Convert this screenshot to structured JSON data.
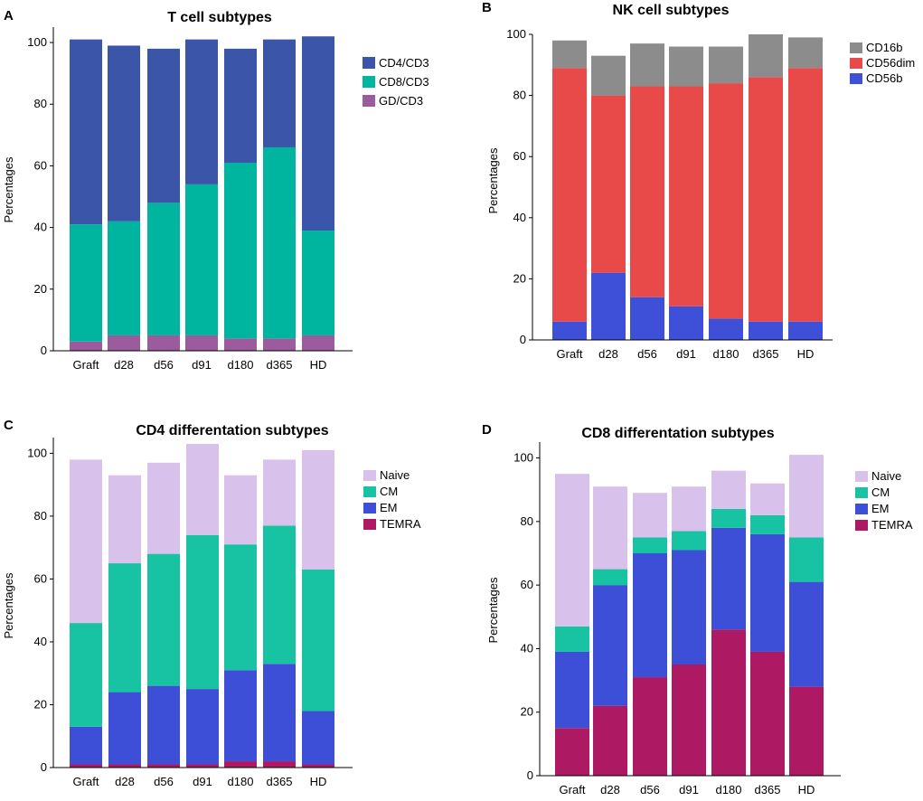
{
  "panel_letters": [
    "A",
    "B",
    "C",
    "D"
  ],
  "colors": {
    "cd4": "#3b55a8",
    "cd8": "#00b5a0",
    "gd": "#9c5b9c",
    "cd16b": "#8c8c8c",
    "cd56dim": "#e84a4a",
    "cd56b": "#3e4fd8",
    "naive": "#d8c2ec",
    "cm": "#17c3a3",
    "em": "#3d4fd6",
    "temra": "#ad1a63"
  },
  "chart_data": [
    {
      "type": "bar",
      "stacked": true,
      "title": "T cell subtypes",
      "xlabel": "",
      "ylabel": "Percentages",
      "ylim": [
        0,
        105
      ],
      "yticks": [
        0,
        20,
        40,
        60,
        80,
        100
      ],
      "categories": [
        "Graft",
        "d28",
        "d56",
        "d91",
        "d180",
        "d365",
        "HD"
      ],
      "legend_position": "top-right",
      "series": [
        {
          "name": "GD/CD3",
          "color": "#9c5b9c",
          "values": [
            3,
            5,
            5,
            5,
            4,
            4,
            5
          ]
        },
        {
          "name": "CD8/CD3",
          "color": "#00b5a0",
          "values": [
            38,
            37,
            43,
            49,
            57,
            62,
            34
          ]
        },
        {
          "name": "CD4/CD3",
          "color": "#3b55a8",
          "values": [
            60,
            57,
            50,
            47,
            37,
            35,
            63
          ]
        }
      ],
      "legend_order": [
        "CD4/CD3",
        "CD8/CD3",
        "GD/CD3"
      ]
    },
    {
      "type": "bar",
      "stacked": true,
      "title": "NK cell subtypes",
      "xlabel": "",
      "ylabel": "Percentages",
      "ylim": [
        0,
        100
      ],
      "yticks": [
        0,
        20,
        40,
        60,
        80,
        100
      ],
      "categories": [
        "Graft",
        "d28",
        "d56",
        "d91",
        "d180",
        "d365",
        "HD"
      ],
      "legend_position": "top-right",
      "series": [
        {
          "name": "CD56b",
          "color": "#3e4fd8",
          "values": [
            6,
            22,
            14,
            11,
            7,
            6,
            6
          ]
        },
        {
          "name": "CD56dim",
          "color": "#e84a4a",
          "values": [
            83,
            58,
            69,
            72,
            77,
            80,
            83
          ]
        },
        {
          "name": "CD16b",
          "color": "#8c8c8c",
          "values": [
            9,
            13,
            14,
            13,
            12,
            14,
            10
          ]
        }
      ],
      "legend_order": [
        "CD16b",
        "CD56dim",
        "CD56b"
      ]
    },
    {
      "type": "bar",
      "stacked": true,
      "title": "CD4 differentation subtypes",
      "xlabel": "",
      "ylabel": "Percentages",
      "ylim": [
        0,
        105
      ],
      "yticks": [
        0,
        20,
        40,
        60,
        80,
        100
      ],
      "categories": [
        "Graft",
        "d28",
        "d56",
        "d91",
        "d180",
        "d365",
        "HD"
      ],
      "legend_position": "top-right",
      "series": [
        {
          "name": "TEMRA",
          "color": "#ad1a63",
          "values": [
            1,
            1,
            1,
            1,
            2,
            2,
            1
          ]
        },
        {
          "name": "EM",
          "color": "#3d4fd6",
          "values": [
            12,
            23,
            25,
            24,
            29,
            31,
            17
          ]
        },
        {
          "name": "CM",
          "color": "#17c3a3",
          "values": [
            33,
            41,
            42,
            49,
            40,
            44,
            45
          ]
        },
        {
          "name": "Naive",
          "color": "#d8c2ec",
          "values": [
            52,
            28,
            29,
            29,
            22,
            21,
            38
          ]
        }
      ],
      "legend_order": [
        "Naive",
        "CM",
        "EM",
        "TEMRA"
      ]
    },
    {
      "type": "bar",
      "stacked": true,
      "title": "CD8 differentation subtypes",
      "xlabel": "",
      "ylabel": "Percentages",
      "ylim": [
        0,
        105
      ],
      "yticks": [
        0,
        20,
        40,
        60,
        80,
        100
      ],
      "categories": [
        "Graft",
        "d28",
        "d56",
        "d91",
        "d180",
        "d365",
        "HD"
      ],
      "legend_position": "top-right",
      "series": [
        {
          "name": "TEMRA",
          "color": "#ad1a63",
          "values": [
            15,
            22,
            31,
            35,
            46,
            39,
            28
          ]
        },
        {
          "name": "EM",
          "color": "#3d4fd6",
          "values": [
            24,
            38,
            39,
            36,
            32,
            37,
            33
          ]
        },
        {
          "name": "CM",
          "color": "#17c3a3",
          "values": [
            8,
            5,
            5,
            6,
            6,
            6,
            14
          ]
        },
        {
          "name": "Naive",
          "color": "#d8c2ec",
          "values": [
            48,
            26,
            14,
            14,
            12,
            10,
            26
          ]
        }
      ],
      "legend_order": [
        "Naive",
        "CM",
        "EM",
        "TEMRA"
      ]
    }
  ]
}
